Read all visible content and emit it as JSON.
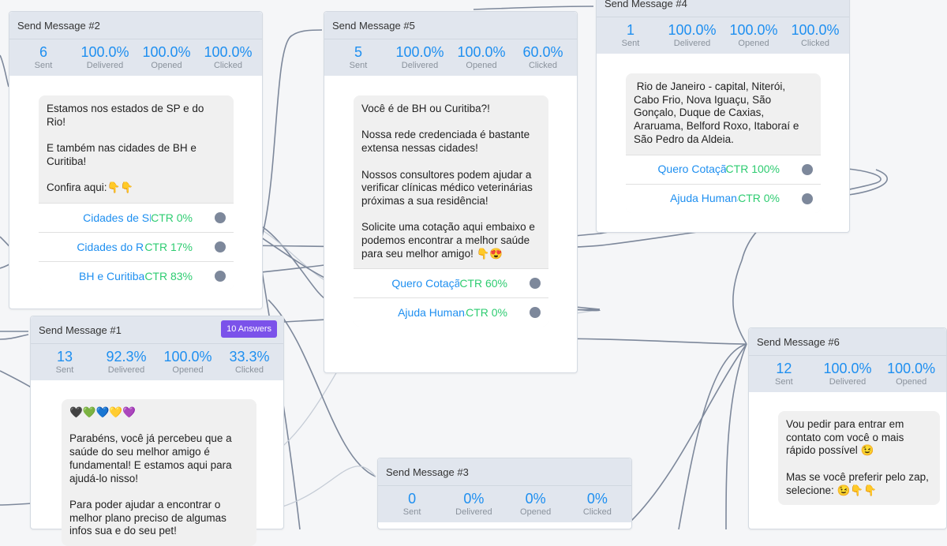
{
  "nodes": {
    "n2": {
      "title": "Send Message #2",
      "stats": [
        {
          "v": "6",
          "l": "Sent"
        },
        {
          "v": "100.0%",
          "l": "Delivered"
        },
        {
          "v": "100.0%",
          "l": "Opened"
        },
        {
          "v": "100.0%",
          "l": "Clicked"
        }
      ],
      "text": "Estamos nos estados de SP e do Rio!\n\nE também nas cidades de BH e Curitiba!\n\nConfira aqui:👇👇",
      "buttons": [
        {
          "label": "Cidades de SP",
          "ctr": "CTR 0%"
        },
        {
          "label": "Cidades do Rio",
          "ctr": "CTR 17%"
        },
        {
          "label": "BH e Curitiba",
          "ctr": "CTR 83%"
        }
      ]
    },
    "n5": {
      "title": "Send Message #5",
      "stats": [
        {
          "v": "5",
          "l": "Sent"
        },
        {
          "v": "100.0%",
          "l": "Delivered"
        },
        {
          "v": "100.0%",
          "l": "Opened"
        },
        {
          "v": "60.0%",
          "l": "Clicked"
        }
      ],
      "text": "Você é de BH ou Curitiba?!\n\nNossa rede credenciada é bastante extensa nessas cidades!\n\nNossos consultores podem ajudar a verificar clínicas médico veterinárias próximas a sua residência!\n\nSolicite uma cotação aqui embaixo e podemos encontrar a melhor saúde para seu melhor amigo! 👇😍",
      "buttons": [
        {
          "label": "Quero Cotação",
          "ctr": "CTR 60%"
        },
        {
          "label": "Ajuda Humana 🙋",
          "ctr": "CTR 0%"
        }
      ]
    },
    "n4": {
      "title": "Send Message #4",
      "stats": [
        {
          "v": "1",
          "l": "Sent"
        },
        {
          "v": "100.0%",
          "l": "Delivered"
        },
        {
          "v": "100.0%",
          "l": "Opened"
        },
        {
          "v": "100.0%",
          "l": "Clicked"
        }
      ],
      "text": " Rio de Janeiro - capital, Niterói, Cabo Frio, Nova Iguaçu, São Gonçalo, Duque de Caxias, Araruama, Belford Roxo, Itaboraí e São Pedro da Aldeia.",
      "buttons": [
        {
          "label": "Quero Cotação",
          "ctr": "CTR 100%"
        },
        {
          "label": "Ajuda Humana 🙋",
          "ctr": "CTR 0%"
        }
      ]
    },
    "n1": {
      "title": "Send Message #1",
      "badge": "10 Answers",
      "stats": [
        {
          "v": "13",
          "l": "Sent"
        },
        {
          "v": "92.3%",
          "l": "Delivered"
        },
        {
          "v": "100.0%",
          "l": "Opened"
        },
        {
          "v": "33.3%",
          "l": "Clicked"
        }
      ],
      "text": "🖤💚💙💛💜\n\nParabéns, você já percebeu que a saúde do seu melhor amigo é fundamental! E estamos aqui para ajudá-lo nisso!\n\nPara poder ajudar a encontrar o melhor plano preciso de algumas infos sua e do seu pet!"
    },
    "n3": {
      "title": "Send Message #3",
      "stats": [
        {
          "v": "0",
          "l": "Sent"
        },
        {
          "v": "0%",
          "l": "Delivered"
        },
        {
          "v": "0%",
          "l": "Opened"
        },
        {
          "v": "0%",
          "l": "Clicked"
        }
      ]
    },
    "n6": {
      "title": "Send Message #6",
      "stats": [
        {
          "v": "12",
          "l": "Sent"
        },
        {
          "v": "100.0%",
          "l": "Delivered"
        },
        {
          "v": "100.0%",
          "l": "Opened"
        }
      ],
      "text": "Vou pedir para entrar em contato com você o mais rápido possível 😉\n\nMas se você preferir pelo zap, selecione: 😉👇👇"
    }
  }
}
